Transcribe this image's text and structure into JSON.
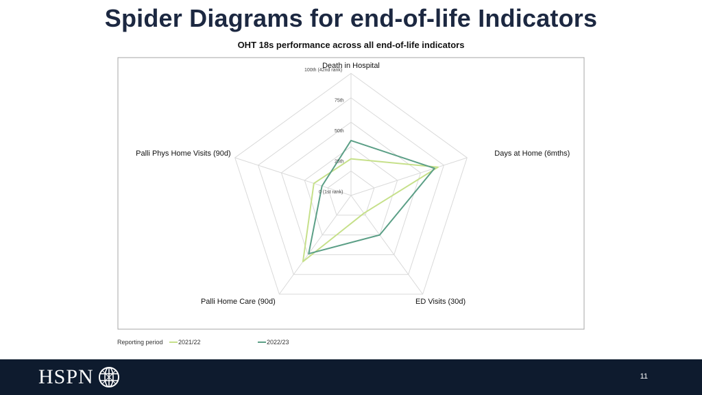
{
  "slide": {
    "title": "Spider Diagrams for end-of-life Indicators",
    "page_number": "11"
  },
  "logo": {
    "text": "HSPN",
    "icon": "globe-icon"
  },
  "legend": {
    "label": "Reporting period"
  },
  "colors": {
    "series_2021_22": "#c6e08a",
    "series_2022_23": "#5b9f86",
    "grid": "#d9d9d9",
    "footer": "#0e1b2e",
    "title": "#1c2841"
  },
  "chart_data": {
    "type": "radar",
    "title": "OHT 18s performance across all end-of-life indicators",
    "axes": [
      "Death in Hospital",
      "Days at Home (6mths)",
      "ED Visits (30d)",
      "Palli Home Care (90d)",
      "Palli Phys Home Visits (90d)"
    ],
    "tick_labels": [
      "0 (1st rank)",
      "25th",
      "50th",
      "75th",
      "100th (42nd rank)"
    ],
    "range": [
      0,
      100
    ],
    "grid": true,
    "legend_position": "bottom-left",
    "series": [
      {
        "name": "2021/22",
        "values": [
          30,
          75,
          18,
          67,
          32
        ]
      },
      {
        "name": "2022/23",
        "values": [
          45,
          72,
          40,
          59,
          25
        ]
      }
    ]
  }
}
